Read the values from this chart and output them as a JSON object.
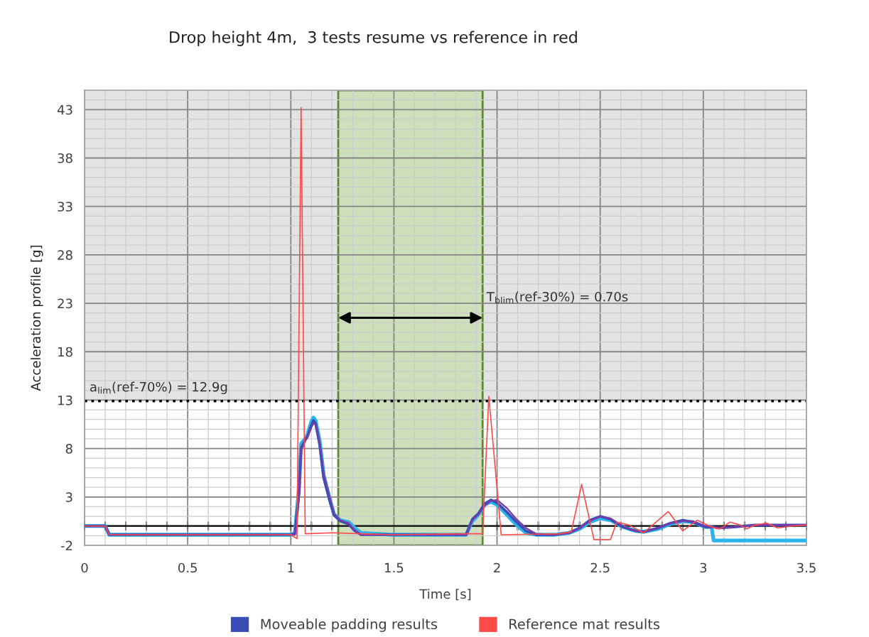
{
  "chart_data": {
    "type": "line",
    "title": "Drop height 4m,  3 tests resume vs reference in red",
    "xlabel": "Time [s]",
    "ylabel": "Acceleration profile [g]",
    "x": [
      0,
      0.1,
      0.12,
      0.5,
      1.0,
      1.02,
      1.04,
      1.05,
      1.07,
      1.08,
      1.1,
      1.11,
      1.12,
      1.14,
      1.16,
      1.19,
      1.21,
      1.24,
      1.28,
      1.31,
      1.34,
      1.5,
      1.85,
      1.88,
      1.91,
      1.94,
      1.97,
      2.0,
      2.05,
      2.09,
      2.14,
      2.19,
      2.28,
      2.35,
      2.4,
      2.45,
      2.5,
      2.55,
      2.61,
      2.67,
      2.71,
      2.78,
      2.84,
      2.9,
      2.95,
      3.01,
      3.04,
      3.05,
      3.07,
      3.15,
      3.25,
      3.5
    ],
    "series": [
      {
        "color": "#2db3e8",
        "values": [
          0,
          0,
          -0.9,
          -0.9,
          -0.9,
          -0.7,
          4.0,
          8.5,
          9.0,
          9.4,
          10.8,
          11.2,
          10.9,
          8.8,
          5.2,
          2.7,
          1.2,
          0.6,
          0.4,
          -0.2,
          -0.7,
          -0.9,
          -0.9,
          0.5,
          1.2,
          2.2,
          2.5,
          2.2,
          1.1,
          0.2,
          -0.7,
          -0.9,
          -0.9,
          -0.7,
          -0.3,
          0.4,
          0.8,
          0.6,
          -0.1,
          -0.5,
          -0.6,
          -0.3,
          0.2,
          0.5,
          0.4,
          -0.1,
          -0.1,
          -1.5,
          -1.5,
          -1.5,
          -1.5,
          -1.5
        ]
      },
      {
        "name": "Moveable padding results",
        "color": "#3a4db5",
        "values": [
          0,
          0,
          -0.9,
          -0.9,
          -0.9,
          -0.8,
          3.5,
          8.0,
          8.9,
          9.2,
          10.4,
          10.9,
          10.6,
          8.4,
          4.9,
          2.5,
          1.1,
          0.5,
          0.2,
          -0.5,
          -0.9,
          -0.9,
          -0.9,
          0.7,
          1.3,
          2.3,
          2.7,
          2.4,
          1.4,
          0.5,
          -0.5,
          -0.9,
          -0.9,
          -0.7,
          -0.2,
          0.6,
          1.0,
          0.7,
          -0.1,
          -0.5,
          -0.6,
          -0.2,
          0.3,
          0.6,
          0.4,
          -0.1,
          -0.1,
          -0.1,
          -0.2,
          -0.1,
          0.1,
          0.1
        ]
      },
      {
        "color": "#7b3aa8",
        "values": [
          0,
          0,
          -0.9,
          -0.9,
          -0.9,
          -0.9,
          3.0,
          7.8,
          8.8,
          9.1,
          10.2,
          10.6,
          10.5,
          8.6,
          5.4,
          2.9,
          1.3,
          0.6,
          0.3,
          -0.4,
          -0.9,
          -0.9,
          -0.9,
          0.6,
          1.2,
          2.1,
          2.6,
          2.7,
          1.8,
          0.8,
          -0.2,
          -0.8,
          -0.9,
          -0.7,
          -0.2,
          0.5,
          1.0,
          0.8,
          0.0,
          -0.5,
          -0.6,
          -0.2,
          0.3,
          0.5,
          0.5,
          0.0,
          -0.1,
          -0.1,
          -0.2,
          -0.1,
          0.1,
          0.1
        ]
      },
      {
        "name": "Reference mat results",
        "color": "#ff4a4a",
        "x": [
          0,
          0.1,
          0.12,
          0.5,
          1.0,
          1.03,
          1.05,
          1.07,
          1.2,
          1.5,
          1.8,
          1.93,
          1.96,
          2.02,
          2.3,
          2.36,
          2.41,
          2.47,
          2.55,
          2.58,
          2.64,
          2.71,
          2.83,
          2.9,
          2.97,
          3.04,
          3.08,
          3.13,
          3.18,
          3.21,
          3.25,
          3.31,
          3.36,
          3.43,
          3.5
        ],
        "values": [
          0,
          0,
          -0.9,
          -0.9,
          -0.9,
          -1.3,
          43.2,
          -0.8,
          -0.7,
          -0.9,
          -0.8,
          -0.8,
          13.4,
          -0.9,
          -0.8,
          -0.6,
          4.3,
          -1.4,
          -1.4,
          0.4,
          0.1,
          -0.7,
          1.5,
          -0.5,
          0.6,
          -0.1,
          -0.3,
          0.4,
          0.1,
          -0.3,
          0.1,
          0.3,
          -0.2,
          0,
          0.1
        ]
      }
    ],
    "xlim": [
      0,
      3.5
    ],
    "xticks": [
      0,
      {
        "value": 0.1,
        "label": null
      },
      {
        "value": 0.2,
        "label": null
      },
      {
        "value": 0.3,
        "label": null
      },
      {
        "value": 0.4,
        "label": null
      },
      0.5,
      {
        "value": 0.6,
        "label": null
      },
      {
        "value": 0.7,
        "label": null
      },
      {
        "value": 0.8,
        "label": null
      },
      {
        "value": 0.9,
        "label": null
      },
      1,
      {
        "value": 1.1,
        "label": null
      },
      {
        "value": 1.2,
        "label": null
      },
      {
        "value": 1.3,
        "label": null
      },
      {
        "value": 1.4,
        "label": null
      },
      1.5,
      {
        "value": 1.6,
        "label": null
      },
      {
        "value": 1.7,
        "label": null
      },
      {
        "value": 1.8,
        "label": null
      },
      {
        "value": 1.9,
        "label": null
      },
      2,
      {
        "value": 2.1,
        "label": null
      },
      {
        "value": 2.2,
        "label": null
      },
      {
        "value": 2.3,
        "label": null
      },
      {
        "value": 2.4,
        "label": null
      },
      2.5,
      {
        "value": 2.6,
        "label": null
      },
      {
        "value": 2.7,
        "label": null
      },
      {
        "value": 2.8,
        "label": null
      },
      {
        "value": 2.9,
        "label": null
      },
      3,
      {
        "value": 3.1,
        "label": null
      },
      {
        "value": 3.2,
        "label": null
      },
      {
        "value": 3.3,
        "label": null
      },
      {
        "value": 3.4,
        "label": null
      },
      3.5
    ],
    "ylim": [
      -2,
      45
    ],
    "yticks": [
      -2,
      {
        "value": -1,
        "label": null
      },
      {
        "value": 0,
        "label": null
      },
      {
        "value": 1,
        "label": null
      },
      {
        "value": 2,
        "label": null
      },
      3,
      {
        "value": 4,
        "label": null
      },
      {
        "value": 5,
        "label": null
      },
      {
        "value": 6,
        "label": null
      },
      {
        "value": 7,
        "label": null
      },
      8,
      {
        "value": 9,
        "label": null
      },
      {
        "value": 10,
        "label": null
      },
      {
        "value": 11,
        "label": null
      },
      {
        "value": 12,
        "label": null
      },
      13,
      {
        "value": 14,
        "label": null
      },
      {
        "value": 15,
        "label": null
      },
      {
        "value": 16,
        "label": null
      },
      {
        "value": 17,
        "label": null
      },
      18,
      {
        "value": 19,
        "label": null
      },
      {
        "value": 20,
        "label": null
      },
      {
        "value": 21,
        "label": null
      },
      {
        "value": 22,
        "label": null
      },
      23,
      {
        "value": 24,
        "label": null
      },
      {
        "value": 25,
        "label": null
      },
      {
        "value": 26,
        "label": null
      },
      {
        "value": 27,
        "label": null
      },
      28,
      {
        "value": 29,
        "label": null
      },
      {
        "value": 30,
        "label": null
      },
      {
        "value": 31,
        "label": null
      },
      {
        "value": 32,
        "label": null
      },
      33,
      {
        "value": 34,
        "label": null
      },
      {
        "value": 35,
        "label": null
      },
      {
        "value": 36,
        "label": null
      },
      {
        "value": 37,
        "label": null
      },
      38,
      {
        "value": 39,
        "label": null
      },
      {
        "value": 40,
        "label": null
      },
      {
        "value": 41,
        "label": null
      },
      {
        "value": 42,
        "label": null
      },
      43,
      {
        "value": 44,
        "label": null
      },
      {
        "value": 45,
        "label": null
      }
    ],
    "bands": [
      {
        "axis": "y",
        "from": 12.9,
        "to": 45,
        "color": "#e3e3e3"
      },
      {
        "axis": "x",
        "from": 1.23,
        "to": 1.93,
        "color": "#cddfbb",
        "label": "T$_{blim}$(ref-30%) = 0.70s"
      }
    ],
    "ref_lines": [
      {
        "axis": "y",
        "value": 12.9,
        "label": "a$_{lim}$(ref-70%) = 12.9g",
        "color": "#000000",
        "line_style": "dotted"
      },
      {
        "axis": "y",
        "value": 0,
        "color": "#000000",
        "line_style": "solid"
      }
    ],
    "grid": true,
    "legend": "bottom",
    "line_style": "solid"
  }
}
